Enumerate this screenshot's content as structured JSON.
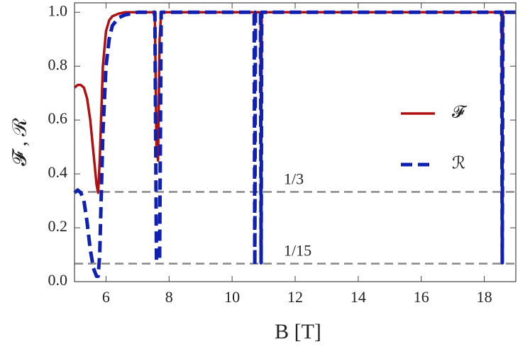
{
  "chart_data": {
    "type": "line",
    "xlabel": "B [T]",
    "ylabel": "𝓕 , ℛ",
    "x": [
      5,
      5.1,
      5.2,
      5.3,
      5.4,
      5.5,
      5.6,
      5.7,
      5.75,
      5.8,
      5.9,
      6.0,
      6.1,
      6.2,
      6.4,
      6.6,
      7.0,
      7.5,
      7.55,
      7.6,
      7.65,
      7.7,
      7.75,
      8.0,
      10.7,
      10.72,
      10.74,
      10.76,
      10.9,
      10.92,
      10.94,
      10.96,
      18.55,
      18.57,
      18.59,
      18.61,
      19
    ],
    "series": [
      {
        "name": "𝓕",
        "color": "#b01010",
        "dash": false,
        "values": [
          0.72,
          0.73,
          0.73,
          0.72,
          0.68,
          0.6,
          0.48,
          0.36,
          0.33,
          0.45,
          0.8,
          0.93,
          0.97,
          0.985,
          0.995,
          1.0,
          1.0,
          1.0,
          0.98,
          0.5,
          0.45,
          0.9,
          1.0,
          1.0,
          1.0,
          0.97,
          1.0,
          1.0,
          1.0,
          0.38,
          1.0,
          1.0,
          1.0,
          0.35,
          1.0,
          1.0,
          1.0
        ]
      },
      {
        "name": "ℛ",
        "color": "#1020b0",
        "dash": true,
        "values": [
          0.33,
          0.34,
          0.33,
          0.3,
          0.22,
          0.12,
          0.05,
          0.02,
          0.02,
          0.1,
          0.55,
          0.8,
          0.9,
          0.95,
          0.98,
          0.99,
          1.0,
          1.0,
          1.0,
          0.08,
          0.08,
          0.08,
          1.0,
          1.0,
          1.0,
          0.06,
          1.0,
          1.0,
          1.0,
          0.07,
          1.0,
          1.0,
          1.0,
          0.07,
          1.0,
          1.0,
          1.0
        ]
      }
    ],
    "reference_lines": [
      {
        "value": 0.3333,
        "label": "1/3"
      },
      {
        "value": 0.0667,
        "label": "1/15"
      }
    ],
    "xlim": [
      5,
      19
    ],
    "ylim": [
      0,
      1.035
    ],
    "xticks": [
      6,
      8,
      10,
      12,
      14,
      16,
      18
    ],
    "yticks": [
      {
        "value": 0,
        "label": "0.0"
      },
      {
        "value": 0.2,
        "label": "0.2"
      },
      {
        "value": 0.4,
        "label": "0.4"
      },
      {
        "value": 0.6,
        "label": "0.6"
      },
      {
        "value": 0.8,
        "label": "0.8"
      },
      {
        "value": 1,
        "label": "1.0"
      }
    ],
    "legend": "right"
  }
}
